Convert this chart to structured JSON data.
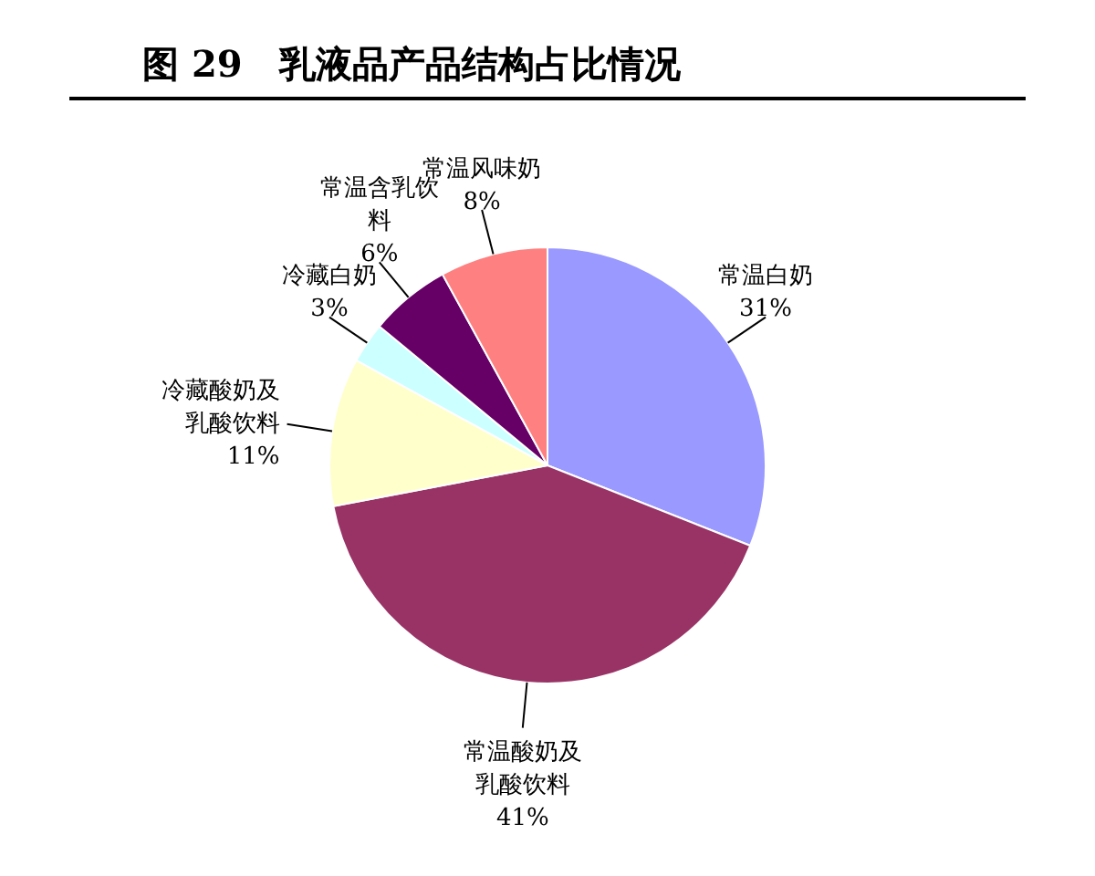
{
  "chart_data": {
    "type": "pie",
    "title": "图 29　乳液品产品结构占比情况",
    "categories": [
      "常温白奶",
      "常温酸奶及乳酸饮料",
      "冷藏酸奶及乳酸饮料",
      "冷藏白奶",
      "常温含乳饮料",
      "常温风味奶"
    ],
    "values": [
      31,
      41,
      11,
      3,
      6,
      8
    ],
    "value_labels": [
      "31%",
      "41%",
      "11%",
      "3%",
      "6%",
      "8%"
    ],
    "colors": [
      "#9999ff",
      "#993366",
      "#ffffcc",
      "#ccffff",
      "#660066",
      "#ff8080"
    ],
    "legend": false
  }
}
